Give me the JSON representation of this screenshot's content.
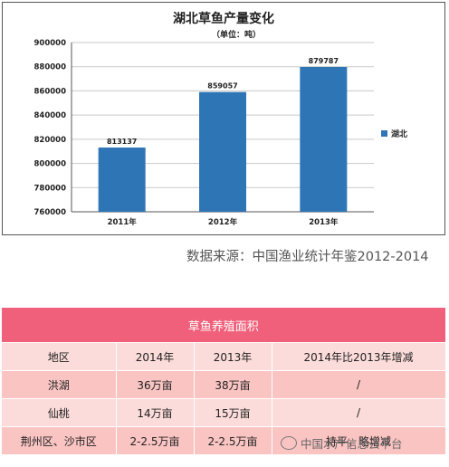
{
  "chart_data": {
    "type": "bar",
    "title": "湖北草鱼产量变化",
    "subtitle": "（单位：吨）",
    "categories": [
      "2011年",
      "2012年",
      "2013年"
    ],
    "series": [
      {
        "name": "湖北",
        "values": [
          813137,
          859057,
          879787
        ],
        "color": "#2e75b6"
      }
    ],
    "data_labels": [
      "813137",
      "859057",
      "879787"
    ],
    "ylim": [
      760000,
      900000
    ],
    "yticks": [
      760000,
      780000,
      800000,
      820000,
      840000,
      860000,
      880000,
      900000
    ],
    "ytick_labels": [
      "760000",
      "780000",
      "800000",
      "820000",
      "840000",
      "860000",
      "880000",
      "900000"
    ],
    "grid": true,
    "legend": "right"
  },
  "source": "数据来源：中国渔业统计年鉴2012-2014",
  "table": {
    "title": "草鱼养殖面积",
    "header": [
      "地区",
      "2014年",
      "2013年",
      "2014年比2013年增减"
    ],
    "rows": [
      [
        "洪湖",
        "36万亩",
        "38万亩",
        "/"
      ],
      [
        "仙桃",
        "14万亩",
        "15万亩",
        "/"
      ],
      [
        "荆州区、沙市区",
        "2-2.5万亩",
        "2-2.5万亩",
        "持平，略增减"
      ]
    ],
    "colors": {
      "title_bg": "#f0607a",
      "row_dark": "#f9c4c2",
      "row_light": "#fbdcda"
    }
  },
  "watermark": "中国水产信息云平台"
}
